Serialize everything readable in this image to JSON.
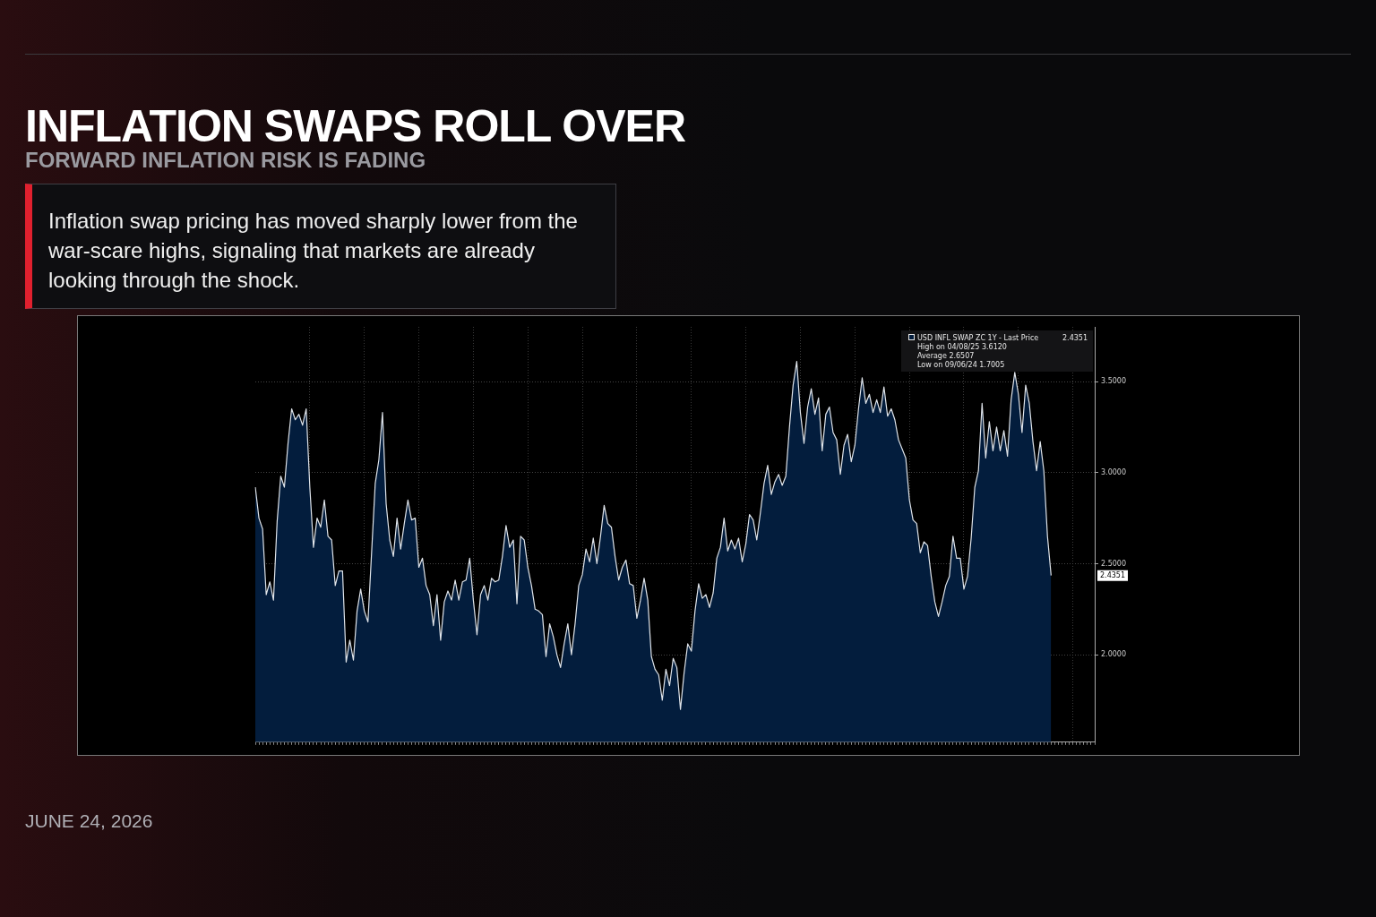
{
  "chart_data": {
    "type": "area",
    "title": "INFLATION SWAPS ROLL OVER",
    "subtitle": "FORWARD INFLATION RISK IS FADING",
    "annotations": [
      "Inflation swap pricing has moved sharply lower from the war-scare highs, signaling that markets are already looking through the shock.",
      "JUNE 24, 2026",
      "High on 04/08/25 3.6120",
      "Average 2.6507",
      "Low on 09/06/24 1.7005",
      "2.4351"
    ],
    "categories": [
      null,
      null,
      null,
      null,
      null,
      null,
      null,
      null,
      null,
      null,
      null,
      null,
      null,
      null,
      null,
      null,
      null,
      null,
      null,
      null,
      null,
      null,
      null,
      null,
      null,
      null,
      null,
      null,
      null,
      null,
      null,
      null,
      null,
      null,
      null,
      null,
      null,
      null,
      null,
      null,
      null,
      null,
      null,
      null,
      null,
      null,
      null,
      null,
      null,
      null,
      null,
      null,
      null,
      null,
      null,
      null,
      null,
      null,
      null,
      null,
      null,
      null,
      null,
      null,
      null,
      null,
      null,
      null,
      null,
      null,
      null,
      null,
      null,
      null,
      null,
      null,
      null,
      null,
      null,
      null,
      null,
      null,
      null,
      null,
      null,
      null,
      null,
      null,
      null,
      null,
      null,
      null,
      null,
      null,
      null,
      null,
      null,
      null,
      null,
      null,
      null,
      null,
      null,
      null,
      null,
      null,
      null,
      null,
      null,
      null,
      null,
      null,
      null,
      null,
      null,
      null,
      null,
      null,
      null,
      null,
      null,
      null,
      null,
      null,
      null,
      null,
      null,
      null,
      null,
      null,
      null,
      null,
      null,
      null,
      null,
      null,
      null,
      null,
      null,
      null,
      null,
      null,
      null,
      null,
      null,
      null,
      null,
      null,
      null,
      null,
      null,
      null,
      null,
      null,
      null,
      null,
      null,
      null,
      null,
      null,
      null,
      null,
      null,
      null,
      null,
      null,
      null,
      null,
      null,
      null,
      null,
      null,
      null,
      null,
      null,
      null,
      null,
      null,
      null,
      null,
      null,
      null,
      null,
      null,
      null,
      null,
      null,
      null,
      null,
      null,
      null,
      null,
      null,
      null,
      null,
      null,
      null,
      null,
      null,
      null,
      null,
      null,
      null,
      null,
      null,
      null,
      null,
      null,
      null,
      null,
      null,
      null,
      null,
      null,
      null,
      null,
      null,
      null,
      null,
      null,
      null,
      null,
      null,
      null,
      null,
      null,
      null,
      null,
      null,
      null,
      null,
      null
    ],
    "series": [
      {
        "name": "USD INFL SWAP ZC 1Y - Last Price",
        "color": "#031d3d",
        "values": [
          2.92,
          2.75,
          2.69,
          2.33,
          2.4,
          2.3,
          2.73,
          2.98,
          2.92,
          3.16,
          3.35,
          3.29,
          3.32,
          3.26,
          3.35,
          2.92,
          2.59,
          2.75,
          2.7,
          2.85,
          2.65,
          2.63,
          2.38,
          2.46,
          2.46,
          1.96,
          2.08,
          1.97,
          2.24,
          2.36,
          2.24,
          2.18,
          2.56,
          2.94,
          3.07,
          3.33,
          2.83,
          2.63,
          2.54,
          2.75,
          2.58,
          2.72,
          2.85,
          2.74,
          2.75,
          2.48,
          2.53,
          2.38,
          2.33,
          2.16,
          2.33,
          2.08,
          2.29,
          2.35,
          2.3,
          2.41,
          2.3,
          2.4,
          2.41,
          2.53,
          2.3,
          2.11,
          2.33,
          2.38,
          2.3,
          2.42,
          2.4,
          2.41,
          2.54,
          2.71,
          2.59,
          2.63,
          2.28,
          2.65,
          2.63,
          2.48,
          2.38,
          2.25,
          2.24,
          2.22,
          1.99,
          2.17,
          2.1,
          2.0,
          1.93,
          2.06,
          2.17,
          2.0,
          2.17,
          2.38,
          2.44,
          2.58,
          2.51,
          2.64,
          2.5,
          2.65,
          2.82,
          2.72,
          2.7,
          2.54,
          2.41,
          2.48,
          2.52,
          2.39,
          2.38,
          2.2,
          2.3,
          2.42,
          2.3,
          1.99,
          1.92,
          1.89,
          1.75,
          1.92,
          1.83,
          1.98,
          1.93,
          1.7,
          1.9,
          2.06,
          2.02,
          2.24,
          2.39,
          2.31,
          2.33,
          2.26,
          2.34,
          2.53,
          2.59,
          2.75,
          2.57,
          2.63,
          2.58,
          2.64,
          2.51,
          2.61,
          2.77,
          2.74,
          2.63,
          2.78,
          2.94,
          3.04,
          2.88,
          2.95,
          2.99,
          2.93,
          2.98,
          3.25,
          3.48,
          3.61,
          3.33,
          3.16,
          3.36,
          3.46,
          3.32,
          3.41,
          3.12,
          3.32,
          3.36,
          3.22,
          3.18,
          2.99,
          3.15,
          3.21,
          3.06,
          3.15,
          3.35,
          3.52,
          3.38,
          3.43,
          3.33,
          3.4,
          3.33,
          3.47,
          3.31,
          3.35,
          3.29,
          3.18,
          3.13,
          3.08,
          2.85,
          2.74,
          2.72,
          2.56,
          2.62,
          2.6,
          2.43,
          2.29,
          2.21,
          2.29,
          2.38,
          2.43,
          2.65,
          2.53,
          2.53,
          2.36,
          2.43,
          2.64,
          2.92,
          3.01,
          3.38,
          3.08,
          3.28,
          3.12,
          3.25,
          3.12,
          3.23,
          3.09,
          3.4,
          3.55,
          3.43,
          3.22,
          3.48,
          3.38,
          3.17,
          3.01,
          3.17,
          3.01,
          2.65,
          2.4351,
          null,
          null,
          null,
          null,
          null,
          null,
          null,
          null,
          null,
          null,
          null,
          null
        ]
      }
    ],
    "ylim": [
      1.52,
      3.8
    ],
    "yticks": [
      {
        "value": 2,
        "label": "2.0000"
      },
      {
        "value": 2.5,
        "label": "2.5000"
      },
      {
        "value": 3,
        "label": "3.0000"
      },
      {
        "value": 3.5,
        "label": "3.5000"
      }
    ],
    "grid": true,
    "legend": "top right",
    "line_style": "solid",
    "marker": "none"
  }
}
